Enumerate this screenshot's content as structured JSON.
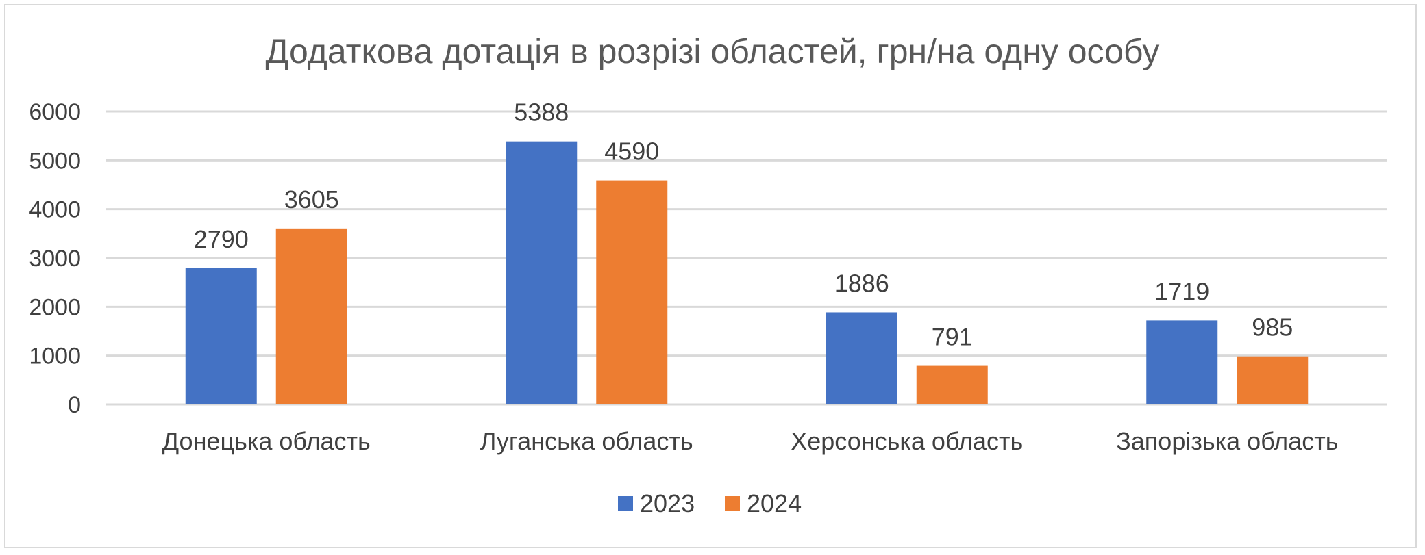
{
  "chart_data": {
    "type": "bar",
    "title": "Додаткова дотація в розрізі областей, грн/на одну особу",
    "categories": [
      "Донецька область",
      "Луганська область",
      "Херсонська область",
      "Запорізька область"
    ],
    "series": [
      {
        "name": "2023",
        "values": [
          2790,
          5388,
          1886,
          1719
        ],
        "color": "#4472c4"
      },
      {
        "name": "2024",
        "values": [
          3605,
          4590,
          791,
          985
        ],
        "color": "#ed7d31"
      }
    ],
    "ylim": [
      0,
      6000
    ],
    "yticks": [
      0,
      1000,
      2000,
      3000,
      4000,
      5000,
      6000
    ],
    "grid": true,
    "legend_position": "bottom",
    "data_labels": true
  }
}
